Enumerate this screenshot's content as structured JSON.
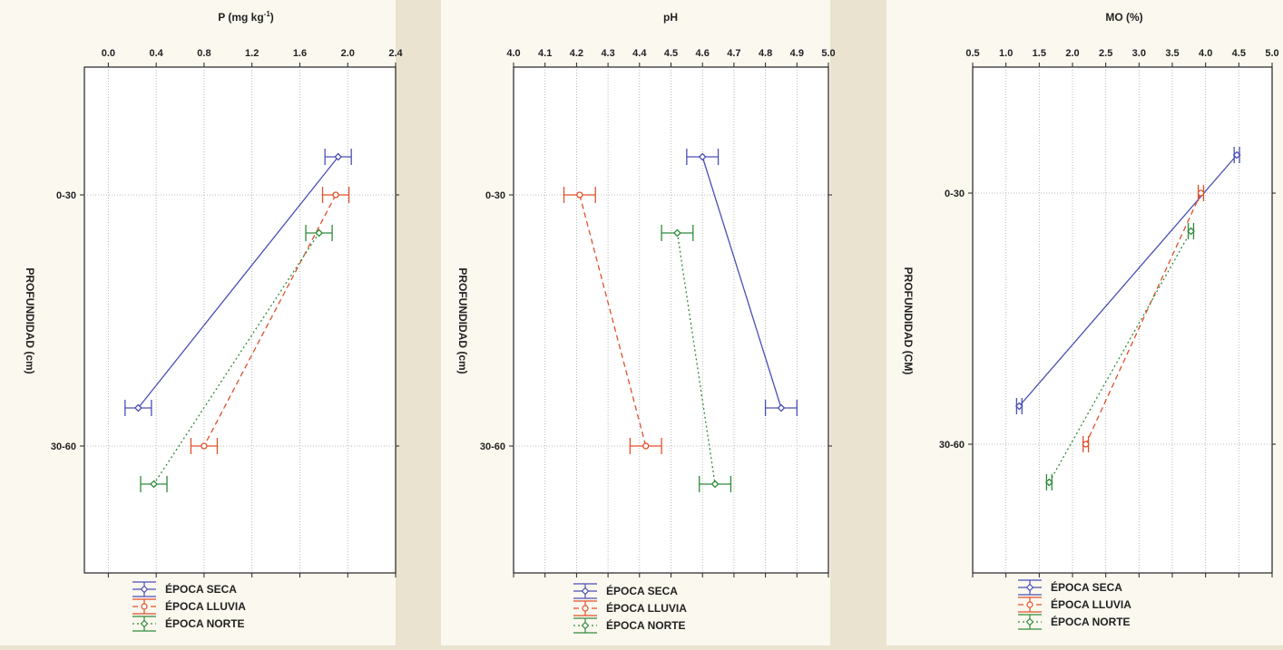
{
  "colors": {
    "background": "#e9e3cf",
    "panel": "#fbf8ef",
    "seca": "#4a4fb5",
    "lluvia": "#e0502a",
    "norte": "#2e8b3a",
    "grid": "#a8a8a8"
  },
  "series_names": [
    "ÉPOCA SECA",
    "ÉPOCA LLUVIA",
    "ÉPOCA NORTE"
  ],
  "depth_categories": [
    "0-30",
    "30-60"
  ],
  "chart_data": [
    {
      "type": "line",
      "orientation": "horizontal-error-bars",
      "title": "P (mg kg-1)",
      "title_main": "P (mg kg",
      "title_sup": "-1",
      "title_end": ")",
      "ylabel": "PROFUNDIDAD (cm)",
      "xlim": [
        -0.2,
        2.4
      ],
      "x_ticks": [
        "0.0",
        "0.4",
        "0.8",
        "1.2",
        "1.6",
        "2.0",
        "2.4"
      ],
      "y_categories": [
        "0-30",
        "30-60"
      ],
      "series": [
        {
          "name": "ÉPOCA SECA",
          "x": [
            1.92,
            0.25
          ],
          "err": [
            0.11,
            0.11
          ]
        },
        {
          "name": "ÉPOCA LLUVIA",
          "x": [
            1.9,
            0.8
          ],
          "err": [
            0.11,
            0.11
          ]
        },
        {
          "name": "ÉPOCA NORTE",
          "x": [
            1.76,
            0.38
          ],
          "err": [
            0.11,
            0.11
          ]
        }
      ],
      "grid": true,
      "legend": "bottom"
    },
    {
      "type": "line",
      "orientation": "horizontal-error-bars",
      "title": "pH",
      "ylabel": "PROFUNDIDAD (cm)",
      "xlim": [
        4.0,
        5.0
      ],
      "x_ticks": [
        "4.0",
        "4.1",
        "4.2",
        "4.3",
        "4.4",
        "4.5",
        "4.6",
        "4.7",
        "4.8",
        "4.9",
        "5.0"
      ],
      "y_categories": [
        "0-30",
        "30-60"
      ],
      "series": [
        {
          "name": "ÉPOCA SECA",
          "x": [
            4.6,
            4.85
          ],
          "err": [
            0.05,
            0.05
          ]
        },
        {
          "name": "ÉPOCA LLUVIA",
          "x": [
            4.21,
            4.42
          ],
          "err": [
            0.05,
            0.05
          ]
        },
        {
          "name": "ÉPOCA NORTE",
          "x": [
            4.52,
            4.64
          ],
          "err": [
            0.05,
            0.05
          ]
        }
      ],
      "grid": true,
      "legend": "bottom"
    },
    {
      "type": "line",
      "orientation": "horizontal-error-bars",
      "title": "MO (%)",
      "ylabel": "PROFUNDIDAD (CM)",
      "xlim": [
        0.5,
        5.0
      ],
      "x_ticks": [
        "0.5",
        "1.0",
        "1.5",
        "2.0",
        "2.5",
        "3.0",
        "3.5",
        "4.0",
        "4.5",
        "5.0"
      ],
      "y_categories": [
        "0-30",
        "30-60"
      ],
      "series": [
        {
          "name": "ÉPOCA SECA",
          "x": [
            4.47,
            1.2
          ],
          "err": [
            0.04,
            0.04
          ]
        },
        {
          "name": "ÉPOCA LLUVIA",
          "x": [
            3.93,
            2.2
          ],
          "err": [
            0.04,
            0.04
          ]
        },
        {
          "name": "ÉPOCA NORTE",
          "x": [
            3.78,
            1.65
          ],
          "err": [
            0.04,
            0.04
          ]
        }
      ],
      "grid": true,
      "legend": "bottom"
    }
  ]
}
